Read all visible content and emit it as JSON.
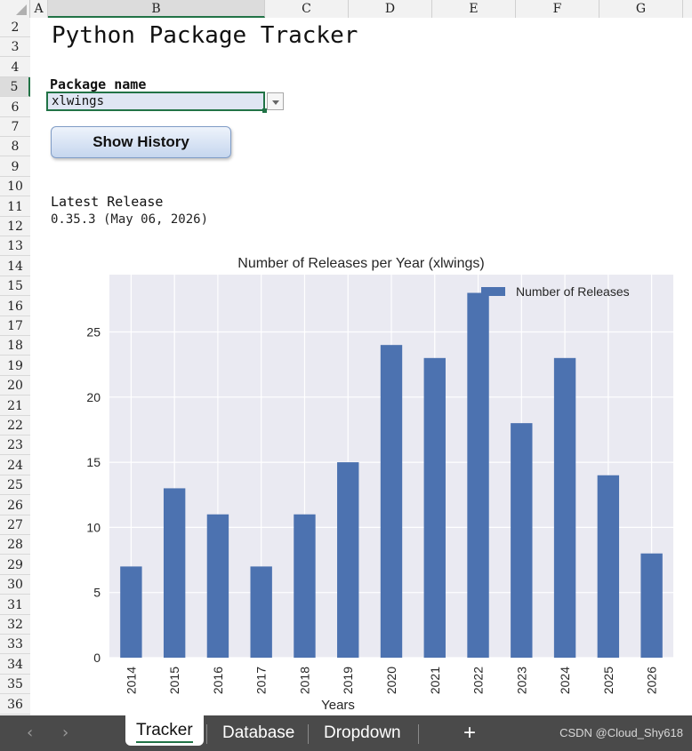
{
  "sheet": {
    "columns": [
      "A",
      "B",
      "C",
      "D",
      "E",
      "F",
      "G"
    ],
    "rows": [
      "2",
      "3",
      "4",
      "5",
      "6",
      "7",
      "8",
      "9",
      "10",
      "11",
      "12",
      "13",
      "14",
      "15",
      "16",
      "17",
      "18",
      "19",
      "20",
      "21",
      "22",
      "23",
      "24",
      "25",
      "26",
      "27",
      "28",
      "29",
      "30",
      "31",
      "32",
      "33",
      "34",
      "35",
      "36"
    ],
    "title": "Python Package Tracker",
    "package_label": "Package name",
    "package_value": "xlwings",
    "button_label": "Show History",
    "latest_label": "Latest Release",
    "latest_value": "0.35.3 (May 06, 2026)"
  },
  "chart_data": {
    "type": "bar",
    "title": "Number of Releases per Year (xlwings)",
    "xlabel": "Years",
    "ylabel": "",
    "categories": [
      "2014",
      "2015",
      "2016",
      "2017",
      "2018",
      "2019",
      "2020",
      "2021",
      "2022",
      "2023",
      "2024",
      "2025",
      "2026"
    ],
    "series": [
      {
        "name": "Number of Releases",
        "values": [
          7,
          13,
          11,
          7,
          11,
          15,
          24,
          23,
          28,
          18,
          23,
          14,
          8
        ]
      }
    ],
    "ylim": [
      0,
      29.4
    ],
    "yticks": [
      0,
      5,
      10,
      15,
      20,
      25
    ],
    "grid": true,
    "legend": "top-right",
    "bar_color": "#4c72b0",
    "background": "#eaeaf2"
  },
  "tabs": [
    "Tracker",
    "Database",
    "Dropdown"
  ],
  "add_tab": "+",
  "watermark": "CSDN @Cloud_Shy618"
}
